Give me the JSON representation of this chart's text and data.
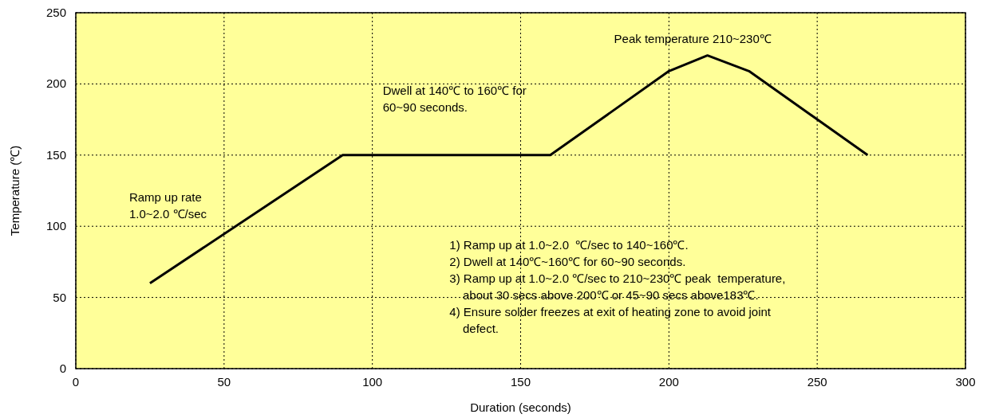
{
  "chart_data": {
    "type": "line",
    "xlabel": "Duration (seconds)",
    "ylabel": "Temperature (℃)",
    "x": [
      25,
      90,
      160,
      200,
      213,
      227,
      267
    ],
    "series": [
      {
        "color": "#000000",
        "values": [
          60,
          150,
          150,
          209,
          220,
          209,
          150
        ]
      }
    ],
    "xlim": [
      0,
      300
    ],
    "xticks": [
      0,
      50,
      100,
      150,
      200,
      250,
      300
    ],
    "ylim": [
      0,
      250
    ],
    "yticks": [
      0,
      50,
      100,
      150,
      200,
      250
    ],
    "grid": true,
    "marker": "none",
    "line_style": "solid",
    "annotations": [
      "Peak temperature 210~230℃",
      "Dwell at 140℃ to 160℃ for\n60~90 seconds.",
      "Ramp up rate\n1.0~2.0 ℃/sec",
      "1) Ramp up at 1.0~2.0  ℃/sec to 140~160℃.\n2) Dwell at 140℃~160℃ for 60~90 seconds.\n3) Ramp up at 1.0~2.0 ℃/sec to 210~230℃ peak  temperature,\n    about 30 secs above 200℃ or 45~90 secs above183℃.\n4) Ensure solder freezes at exit of heating zone to avoid joint\n    defect."
    ]
  }
}
